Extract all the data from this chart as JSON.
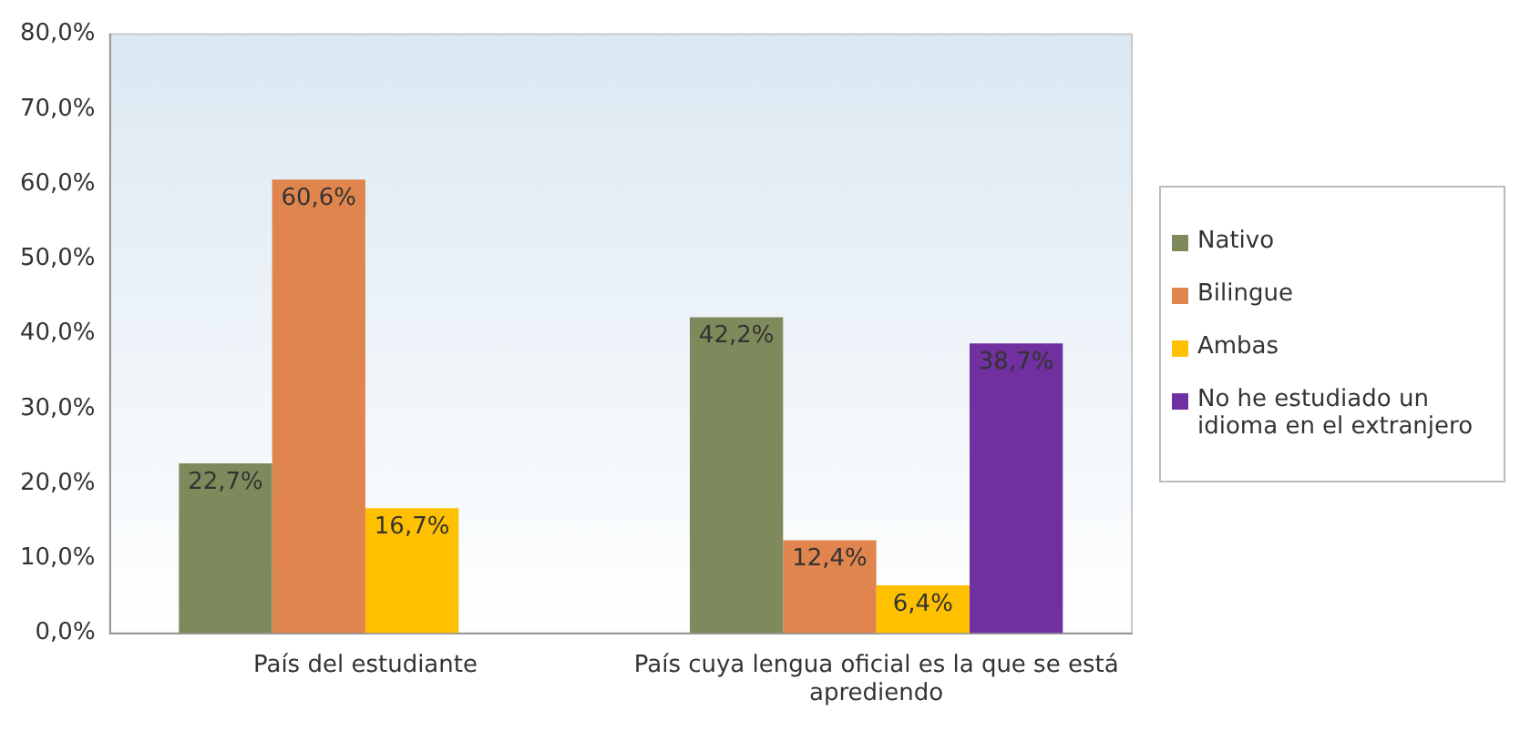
{
  "chart_data": {
    "type": "bar",
    "categories": [
      "País del estudiante",
      "País cuya lengua oficial es la que se está aprediendo"
    ],
    "series": [
      {
        "name": "Nativo",
        "color": "#7f8a5c",
        "values": [
          22.7,
          42.2
        ],
        "value_labels": [
          "22,7%",
          "42,2%"
        ]
      },
      {
        "name": "Bilingue",
        "color": "#e0854e",
        "values": [
          60.6,
          12.4
        ],
        "value_labels": [
          "60,6%",
          "12,4%"
        ]
      },
      {
        "name": "Ambas",
        "color": "#ffc000",
        "values": [
          16.7,
          6.4
        ],
        "value_labels": [
          "16,7%",
          "6,4%"
        ]
      },
      {
        "name": "No he estudiado un idioma en el extranjero",
        "color": "#7030a0",
        "values": [
          null,
          38.7
        ],
        "value_labels": [
          null,
          "38,7%"
        ]
      }
    ],
    "ylim": [
      0,
      80
    ],
    "yticks": [
      {
        "value": 0,
        "label": "0,0%"
      },
      {
        "value": 10,
        "label": "10,0%"
      },
      {
        "value": 20,
        "label": "20,0%"
      },
      {
        "value": 30,
        "label": "30,0%"
      },
      {
        "value": 40,
        "label": "40,0%"
      },
      {
        "value": 50,
        "label": "50,0%"
      },
      {
        "value": 60,
        "label": "60,0%"
      },
      {
        "value": 70,
        "label": "70,0%"
      },
      {
        "value": 80,
        "label": "80,0%"
      }
    ],
    "grid": false,
    "legend": "right"
  }
}
